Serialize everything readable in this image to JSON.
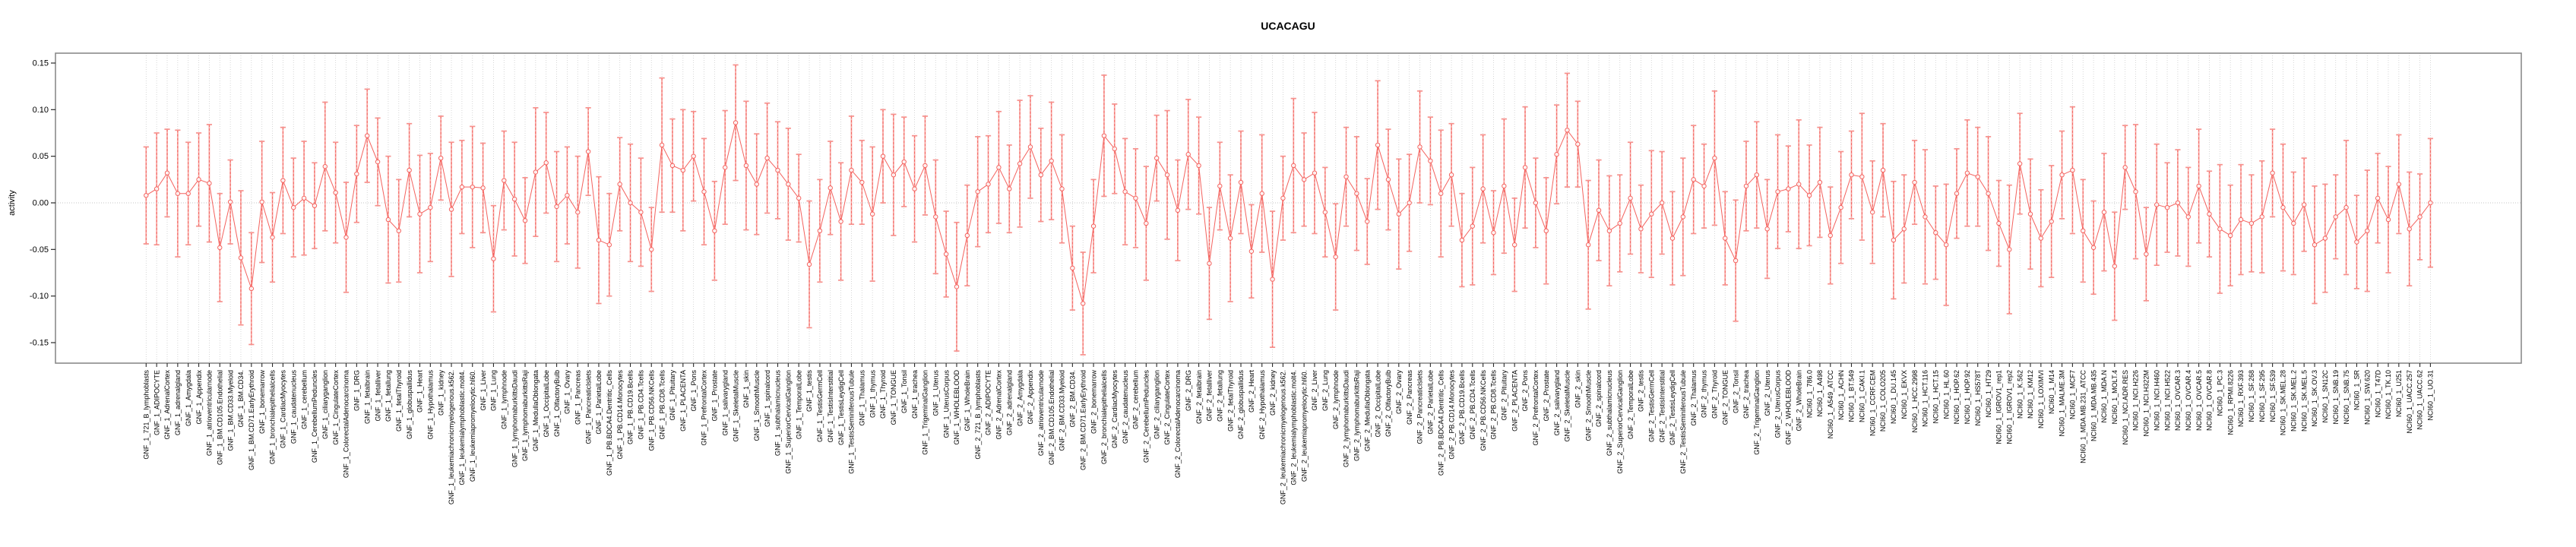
{
  "title": "UCACAGU",
  "y_axis_title": "activity",
  "chart_data": {
    "type": "line",
    "subtype": "points-with-error-bars",
    "title": "UCACAGU",
    "xlabel": "",
    "ylabel": "activity",
    "ylim": [
      -0.166,
      0.166
    ],
    "yticks": [
      0.15,
      0.1,
      0.05,
      0.0,
      -0.05,
      -0.1,
      -0.15
    ],
    "ytick_labels": [
      "0.15",
      "0.10",
      "0.05",
      "0.00",
      "-0.05",
      "-0.10",
      "-0.15"
    ],
    "grid": "vertical dotted gridline at every category; dotted horizontal line at y=0",
    "legend": "none",
    "colors": {
      "point": "#f4625e",
      "connector_line": "#f4625e",
      "stem_solid": "#f8aba7",
      "stem_dash": "#f4625e",
      "cap": "#f6918d",
      "gridline": "#cdcdcd",
      "zero_line": "#c4c4c4",
      "box_border": "#8a8a8a",
      "axis": "#2a2a2a",
      "text": "#000000"
    },
    "categories": [
      "GNF_1_721_B_lymphoblasts",
      "GNF_1_ADIPOCYTE",
      "GNF_1_AdrenalCortex",
      "GNF_1_adrenalgland",
      "GNF_1_Amygdala",
      "GNF_1_Appendix",
      "GNF_1_atrioventricularnode",
      "GNF_1_BM.CD105.Endothelial",
      "GNF_1_BM.CD33.Myeloid",
      "GNF_1_BM.CD34.",
      "GNF_1_BM.CD71.EarlyErythroid",
      "GNF_1_bonemarrow",
      "GNF_1_bronchialepithelialcells",
      "GNF_1_CardiacMyocytes",
      "GNF_1_caudatenucleus",
      "GNF_1_cerebellum",
      "GNF_1_CerebellumPeduncles",
      "GNF_1_ciliaryganglion",
      "GNF_1_CingulateCortex",
      "GNF_1_ColorectalAdenocarcinoma",
      "GNF_1_DRG",
      "GNF_1_fetalbrain",
      "GNF_1_fetalliver",
      "GNF_1_fetallung",
      "GNF_1_fetalThyroid",
      "GNF_1_globuspallidus",
      "GNF_1_Heart",
      "GNF_1_Hypothalamus",
      "GNF_1_kidney",
      "GNF_1_leukemiachronicmyelogenous.k562.",
      "GNF_1_leukemialymphoblastic.molt4.",
      "GNF_1_leukemiapromyelocytic.hl60.",
      "GNF_1_Liver",
      "GNF_1_Lung",
      "GNF_1_lymphnode",
      "GNF_1_lymphomaburkittsDaudi",
      "GNF_1_lymphomaburkittsRaji",
      "GNF_1_MedullaOblongata",
      "GNF_1_OccipitalLobe",
      "GNF_1_OlfactoryBulb",
      "GNF_1_Ovary",
      "GNF_1_Pancreas",
      "GNF_1_PancreaticIslets",
      "GNF_1_ParietalLobe",
      "GNF_1_PB.BDCA4.Dentritic_Cells",
      "GNF_1_PB.CD14.Monocytes",
      "GNF_1_PB.CD19.Bcells",
      "GNF_1_PB.CD4.Tcells",
      "GNF_1_PB.CD56.NKCells",
      "GNF_1_PB.CD8.Tcells",
      "GNF_1_Pituitary",
      "GNF_1_PLACENTA",
      "GNF_1_Pons",
      "GNF_1_PrefrontalCortex",
      "GNF_1_Prostate",
      "GNF_1_salivarygland",
      "GNF_1_SkeletalMuscle",
      "GNF_1_skin",
      "GNF_1_SmoothMuscle",
      "GNF_1_spinalcord",
      "GNF_1_subthalamicnucleus",
      "GNF_1_SuperiorCervicalGanglion",
      "GNF_1_TemporalLobe",
      "GNF_1_testis",
      "GNF_1_TestisGermCell",
      "GNF_1_TestisInterstitial",
      "GNF_1_TestisLeydigCell",
      "GNF_1_TestisSeminiferousTubule",
      "GNF_1_Thalamus",
      "GNF_1_thymus",
      "GNF_1_Thyroid",
      "GNF_1_TONGUE",
      "GNF_1_Tonsil",
      "GNF_1_trachea",
      "GNF_1_TrigeminalGanglion",
      "GNF_1_Uterus",
      "GNF_1_UterusCorpus",
      "GNF_1_WHOLEBLOOD",
      "GNF_1_WholeBrain",
      "GNF_2_721_B_lymphoblasts",
      "GNF_2_ADIPOCYTE",
      "GNF_2_AdrenalCortex",
      "GNF_2_adrenalgland",
      "GNF_2_Amygdala",
      "GNF_2_Appendix",
      "GNF_2_atrioventricularnode",
      "GNF_2_BM.CD105.Endothelial",
      "GNF_2_BM.CD33.Myeloid",
      "GNF_2_BM.CD34.",
      "GNF_2_BM.CD71.EarlyErythroid",
      "GNF_2_bonemarrow",
      "GNF_2_bronchialepithelialcells",
      "GNF_2_CardiacMyocytes",
      "GNF_2_caudatenucleus",
      "GNF_2_cerebellum",
      "GNF_2_CerebellumPeduncles",
      "GNF_2_ciliaryganglion",
      "GNF_2_CingulateCortex",
      "GNF_2_ColorectalAdenocarcinoma",
      "GNF_2_DRG",
      "GNF_2_fetalbrain",
      "GNF_2_fetalliver",
      "GNF_2_fetallung",
      "GNF_2_fetalThyroid",
      "GNF_2_globuspallidus",
      "GNF_2_Heart",
      "GNF_2_Hypothalamus",
      "GNF_2_kidney",
      "GNF_2_leukemiachronicmyelogenous.k562.",
      "GNF_2_leukemialymphoblastic.molt4.",
      "GNF_2_leukemiapromyelocytic.hl60.",
      "GNF_2_Liver",
      "GNF_2_Lung",
      "GNF_2_lymphnode",
      "GNF_2_lymphomaburkittsDaudi",
      "GNF_2_lymphomaburkittsRaji",
      "GNF_2_MedullaOblongata",
      "GNF_2_OccipitalLobe",
      "GNF_2_OlfactoryBulb",
      "GNF_2_Ovary",
      "GNF_2_Pancreas",
      "GNF_2_PancreaticIslets",
      "GNF_2_ParietalLobe",
      "GNF_2_PB.BDCA4.Dentritic_Cells",
      "GNF_2_PB.CD14.Monocytes",
      "GNF_2_PB.CD19.Bcells",
      "GNF_2_PB.CD4.Tcells",
      "GNF_2_PB.CD56.NKCells",
      "GNF_2_PB.CD8.Tcells",
      "GNF_2_Pituitary",
      "GNF_2_PLACENTA",
      "GNF_2_Pons",
      "GNF_2_PrefrontalCortex",
      "GNF_2_Prostate",
      "GNF_2_salivarygland",
      "GNF_2_SkeletalMuscle",
      "GNF_2_skin",
      "GNF_2_SmoothMuscle",
      "GNF_2_spinalcord",
      "GNF_2_subthalamicnucleus",
      "GNF_2_SuperiorCervicalGanglion",
      "GNF_2_TemporalLobe",
      "GNF_2_testis",
      "GNF_2_TestisGermCell",
      "GNF_2_TestisInterstitial",
      "GNF_2_TestisLeydigCell",
      "GNF_2_TestisSeminiferousTubule",
      "GNF_2_Thalamus",
      "GNF_2_thymus",
      "GNF_2_Thyroid",
      "GNF_2_TONGUE",
      "GNF_2_Tonsil",
      "GNF_2_trachea",
      "GNF_2_TrigeminalGanglion",
      "GNF_2_Uterus",
      "GNF_2_UterusCorpus",
      "GNF_2_WHOLEBLOOD",
      "GNF_2_WholeBrain",
      "NCI60_1_786.0",
      "NCI60_1_A498",
      "NCI60_1_A549_ATCC",
      "NCI60_1_ACHN",
      "NCI60_1_BT.549",
      "NCI60_1_CAKI.1",
      "NCI60_1_CCRF.CEM",
      "NCI60_1_COLO205",
      "NCI60_1_DU.145",
      "NCI60_1_EKVX",
      "NCI60_1_HCC.2998",
      "NCI60_1_HCT.116",
      "NCI60_1_HCT.15",
      "NCI60_1_HL.60",
      "NCI60_1_HOP.62",
      "NCI60_1_HOP.92",
      "NCI60_1_HS578T",
      "NCI60_1_HT29",
      "NCI60_1_IGROV1_rep1",
      "NCI60_1_IGROV1_rep2",
      "NCI60_1_K.562",
      "NCI60_1_KM12",
      "NCI60_1_LOXIMVI",
      "NCI60_1_M14",
      "NCI60_1_MALME.3M",
      "NCI60_1_MCF7",
      "NCI60_1_MDA.MB.231_ATCC",
      "NCI60_1_MDA.MB.435",
      "NCI60_1_MDA.N",
      "NCI60_1_MOLT.4",
      "NCI60_1_NCI.ADR.RES",
      "NCI60_1_NCI.H226",
      "NCI60_1_NCI.H322M",
      "NCI60_1_NCI.H460",
      "NCI60_1_NCI.H522",
      "NCI60_1_OVCAR.3",
      "NCI60_1_OVCAR.4",
      "NCI60_1_OVCAR.5",
      "NCI60_1_OVCAR.8",
      "NCI60_1_PC.3",
      "NCI60_1_RPMI.8226",
      "NCI60_1_RXF.393",
      "NCI60_1_SF.268",
      "NCI60_1_SF.295",
      "NCI60_1_SF.539",
      "NCI60_1_SK.MEL.28",
      "NCI60_1_SK.MEL.2",
      "NCI60_1_SK.MEL.5",
      "NCI60_1_SK.OV.3",
      "NCI60_1_SN12C",
      "NCI60_1_SNB.19",
      "NCI60_1_SNB.75",
      "NCI60_1_SR",
      "NCI60_1_SW.620",
      "NCI60_1_T47D",
      "NCI60_1_TK.10",
      "NCI60_1_U251",
      "NCI60_1_UACC.257",
      "NCI60_1_UACC.62",
      "NCI60_1_UO.31"
    ],
    "values": [
      0.008,
      0.015,
      0.032,
      0.01,
      0.01,
      0.025,
      0.021,
      -0.048,
      0.001,
      -0.059,
      -0.092,
      0.001,
      -0.037,
      0.024,
      -0.005,
      0.005,
      -0.003,
      0.039,
      0.011,
      -0.037,
      0.031,
      0.072,
      0.044,
      -0.018,
      -0.03,
      0.035,
      -0.012,
      -0.005,
      0.048,
      -0.007,
      0.017,
      0.017,
      0.016,
      -0.06,
      0.024,
      0.004,
      -0.019,
      0.033,
      0.043,
      -0.004,
      0.008,
      -0.01,
      0.055,
      -0.04,
      -0.045,
      0.02,
      0.0,
      -0.01,
      -0.05,
      0.062,
      0.04,
      0.035,
      0.05,
      0.012,
      -0.03,
      0.038,
      0.086,
      0.04,
      0.02,
      0.048,
      0.035,
      0.02,
      0.005,
      -0.066,
      -0.03,
      0.016,
      -0.02,
      0.035,
      0.022,
      -0.012,
      0.05,
      0.03,
      0.044,
      0.015,
      0.04,
      -0.015,
      -0.055,
      -0.09,
      -0.035,
      0.012,
      0.02,
      0.038,
      0.015,
      0.042,
      0.06,
      0.03,
      0.045,
      0.015,
      -0.07,
      -0.108,
      -0.025,
      0.072,
      0.058,
      0.012,
      0.005,
      -0.022,
      0.048,
      0.03,
      -0.008,
      0.052,
      0.04,
      -0.065,
      0.018,
      -0.038,
      0.022,
      -0.052,
      0.01,
      -0.082,
      0.005,
      0.04,
      0.025,
      0.032,
      -0.01,
      -0.058,
      0.028,
      0.01,
      -0.02,
      0.062,
      0.025,
      -0.012,
      0.0,
      0.06,
      0.045,
      0.01,
      0.03,
      -0.04,
      -0.025,
      0.015,
      -0.032,
      0.018,
      -0.045,
      0.038,
      0.0,
      -0.03,
      0.052,
      0.078,
      0.063,
      -0.045,
      -0.008,
      -0.03,
      -0.022,
      0.005,
      -0.028,
      -0.012,
      0.0,
      -0.038,
      -0.015,
      0.025,
      0.018,
      0.048,
      -0.038,
      -0.062,
      0.018,
      0.03,
      -0.028,
      0.012,
      0.015,
      0.02,
      0.008,
      0.022,
      -0.035,
      -0.005,
      0.03,
      0.028,
      -0.01,
      0.035,
      -0.04,
      -0.028,
      0.022,
      -0.015,
      -0.032,
      -0.045,
      0.01,
      0.032,
      0.028,
      0.01,
      -0.022,
      -0.05,
      0.042,
      -0.012,
      -0.038,
      -0.02,
      0.03,
      0.035,
      -0.03,
      -0.048,
      -0.01,
      -0.068,
      0.038,
      0.012,
      -0.055,
      -0.002,
      -0.005,
      0.0,
      -0.015,
      0.018,
      -0.012,
      -0.028,
      -0.035,
      -0.018,
      -0.022,
      -0.015,
      0.032,
      -0.005,
      -0.022,
      -0.002,
      -0.045,
      -0.038,
      -0.015,
      -0.005,
      -0.042,
      -0.03,
      0.005,
      -0.018,
      0.02,
      -0.028,
      -0.015,
      0.0
    ],
    "ci": [
      0.052,
      0.06,
      0.047,
      0.068,
      0.055,
      0.05,
      0.063,
      0.058,
      0.045,
      0.072,
      0.06,
      0.065,
      0.048,
      0.057,
      0.053,
      0.061,
      0.046,
      0.069,
      0.054,
      0.059,
      0.052,
      0.05,
      0.047,
      0.068,
      0.055,
      0.05,
      0.063,
      0.058,
      0.045,
      0.072,
      0.05,
      0.065,
      0.048,
      0.057,
      0.053,
      0.061,
      0.046,
      0.069,
      0.054,
      0.059,
      0.052,
      0.06,
      0.047,
      0.068,
      0.055,
      0.05,
      0.063,
      0.058,
      0.045,
      0.072,
      0.05,
      0.065,
      0.048,
      0.057,
      0.053,
      0.061,
      0.062,
      0.069,
      0.054,
      0.059,
      0.052,
      0.06,
      0.047,
      0.068,
      0.055,
      0.05,
      0.063,
      0.058,
      0.045,
      0.072,
      0.05,
      0.065,
      0.048,
      0.057,
      0.053,
      0.061,
      0.046,
      0.069,
      0.054,
      0.059,
      0.052,
      0.06,
      0.047,
      0.068,
      0.055,
      0.05,
      0.063,
      0.058,
      0.045,
      0.055,
      0.05,
      0.065,
      0.048,
      0.057,
      0.053,
      0.061,
      0.046,
      0.069,
      0.054,
      0.059,
      0.052,
      0.06,
      0.047,
      0.068,
      0.055,
      0.05,
      0.063,
      0.073,
      0.045,
      0.072,
      0.05,
      0.065,
      0.048,
      0.057,
      0.053,
      0.061,
      0.046,
      0.069,
      0.054,
      0.059,
      0.052,
      0.06,
      0.047,
      0.068,
      0.055,
      0.05,
      0.063,
      0.058,
      0.045,
      0.072,
      0.05,
      0.065,
      0.048,
      0.057,
      0.053,
      0.061,
      0.046,
      0.069,
      0.054,
      0.059,
      0.052,
      0.06,
      0.047,
      0.068,
      0.055,
      0.05,
      0.063,
      0.058,
      0.045,
      0.072,
      0.05,
      0.065,
      0.048,
      0.057,
      0.053,
      0.061,
      0.046,
      0.069,
      0.054,
      0.059,
      0.052,
      0.06,
      0.047,
      0.068,
      0.055,
      0.05,
      0.063,
      0.058,
      0.045,
      0.072,
      0.05,
      0.065,
      0.048,
      0.057,
      0.053,
      0.061,
      0.046,
      0.069,
      0.054,
      0.059,
      0.052,
      0.06,
      0.047,
      0.068,
      0.055,
      0.05,
      0.063,
      0.058,
      0.045,
      0.072,
      0.05,
      0.065,
      0.048,
      0.057,
      0.053,
      0.061,
      0.046,
      0.069,
      0.054,
      0.059,
      0.052,
      0.06,
      0.047,
      0.068,
      0.055,
      0.05,
      0.063,
      0.058,
      0.045,
      0.072,
      0.05,
      0.065,
      0.048,
      0.057,
      0.053,
      0.061,
      0.046,
      0.069
    ]
  }
}
